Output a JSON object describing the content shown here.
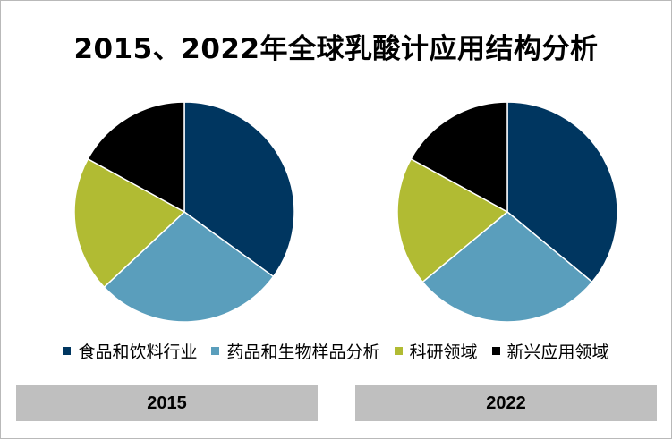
{
  "title": "2015、2022年全球乳酸计应用结构分析",
  "chart_data": [
    {
      "type": "pie",
      "label": "2015",
      "categories": [
        "食品和饮料行业",
        "药品和生物样品分析",
        "科研领域",
        "新兴应用领域"
      ],
      "values": [
        35,
        28,
        20,
        17
      ],
      "colors": [
        "#003660",
        "#5a9ebc",
        "#b1bb33",
        "#000000"
      ]
    },
    {
      "type": "pie",
      "label": "2022",
      "categories": [
        "食品和饮料行业",
        "药品和生物样品分析",
        "科研领域",
        "新兴应用领域"
      ],
      "values": [
        36,
        28,
        19,
        17
      ],
      "colors": [
        "#003660",
        "#5a9ebc",
        "#b1bb33",
        "#000000"
      ]
    }
  ],
  "legend": [
    {
      "label": "食品和饮料行业",
      "color": "#003660"
    },
    {
      "label": "药品和生物样品分析",
      "color": "#5a9ebc"
    },
    {
      "label": "科研领域",
      "color": "#b1bb33"
    },
    {
      "label": "新兴应用领域",
      "color": "#000000"
    }
  ]
}
